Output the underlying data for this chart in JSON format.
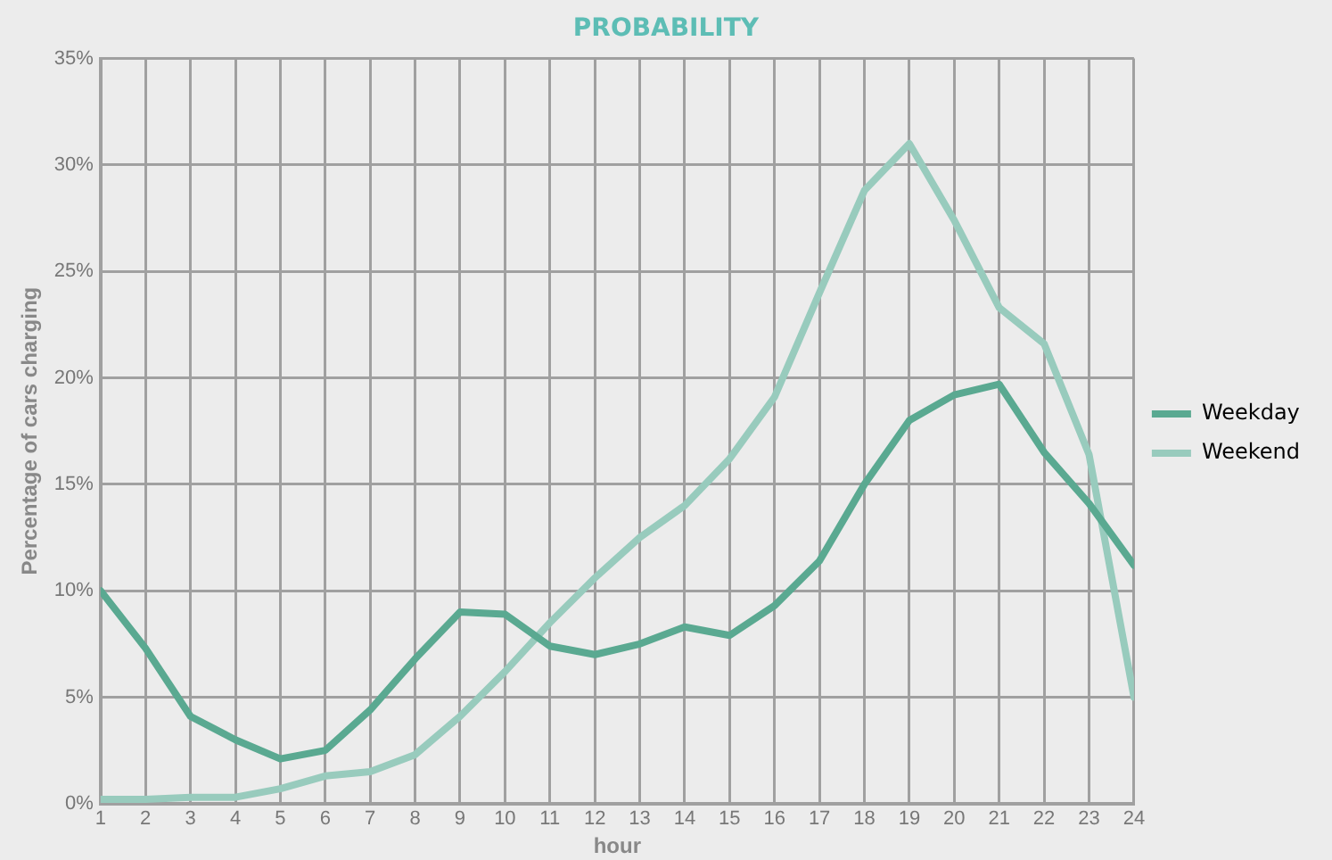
{
  "chart_data": {
    "type": "line",
    "title": "PROBABILITY",
    "xlabel": "hour",
    "ylabel": "Percentage of cars charging",
    "x": [
      1,
      2,
      3,
      4,
      5,
      6,
      7,
      8,
      9,
      10,
      11,
      12,
      13,
      14,
      15,
      16,
      17,
      18,
      19,
      20,
      21,
      22,
      23,
      24
    ],
    "series": [
      {
        "name": "Weekday",
        "color": "#5aa991",
        "values": [
          10,
          7.3,
          4.1,
          3,
          2.1,
          2.5,
          4.4,
          6.8,
          9,
          8.9,
          7.4,
          7,
          7.5,
          8.3,
          7.9,
          9.3,
          11.4,
          15,
          18,
          19.2,
          19.7,
          16.5,
          14.1,
          11.2
        ]
      },
      {
        "name": "Weekend",
        "color": "#98cbbd",
        "values": [
          0.2,
          0.2,
          0.3,
          0.3,
          0.7,
          1.3,
          1.5,
          2.3,
          4.1,
          6.2,
          8.5,
          10.6,
          12.5,
          14,
          16.2,
          19.1,
          24,
          28.8,
          31,
          27.4,
          23.3,
          21.6,
          16.4,
          5
        ]
      }
    ],
    "xlim": [
      1,
      24
    ],
    "xticks": [
      1,
      2,
      3,
      4,
      5,
      6,
      7,
      8,
      9,
      10,
      11,
      12,
      13,
      14,
      15,
      16,
      17,
      18,
      19,
      20,
      21,
      22,
      23,
      24
    ],
    "ylim": [
      0,
      35
    ],
    "yticks": [
      {
        "value": 0,
        "label": "0%"
      },
      {
        "value": 5,
        "label": "5%"
      },
      {
        "value": 10,
        "label": "10%"
      },
      {
        "value": 15,
        "label": "15%"
      },
      {
        "value": 20,
        "label": "20%"
      },
      {
        "value": 25,
        "label": "25%"
      },
      {
        "value": 30,
        "label": "30%"
      },
      {
        "value": 35,
        "label": "35%"
      }
    ],
    "grid": true,
    "legend": "right",
    "marker": "none",
    "line_style": "solid"
  }
}
